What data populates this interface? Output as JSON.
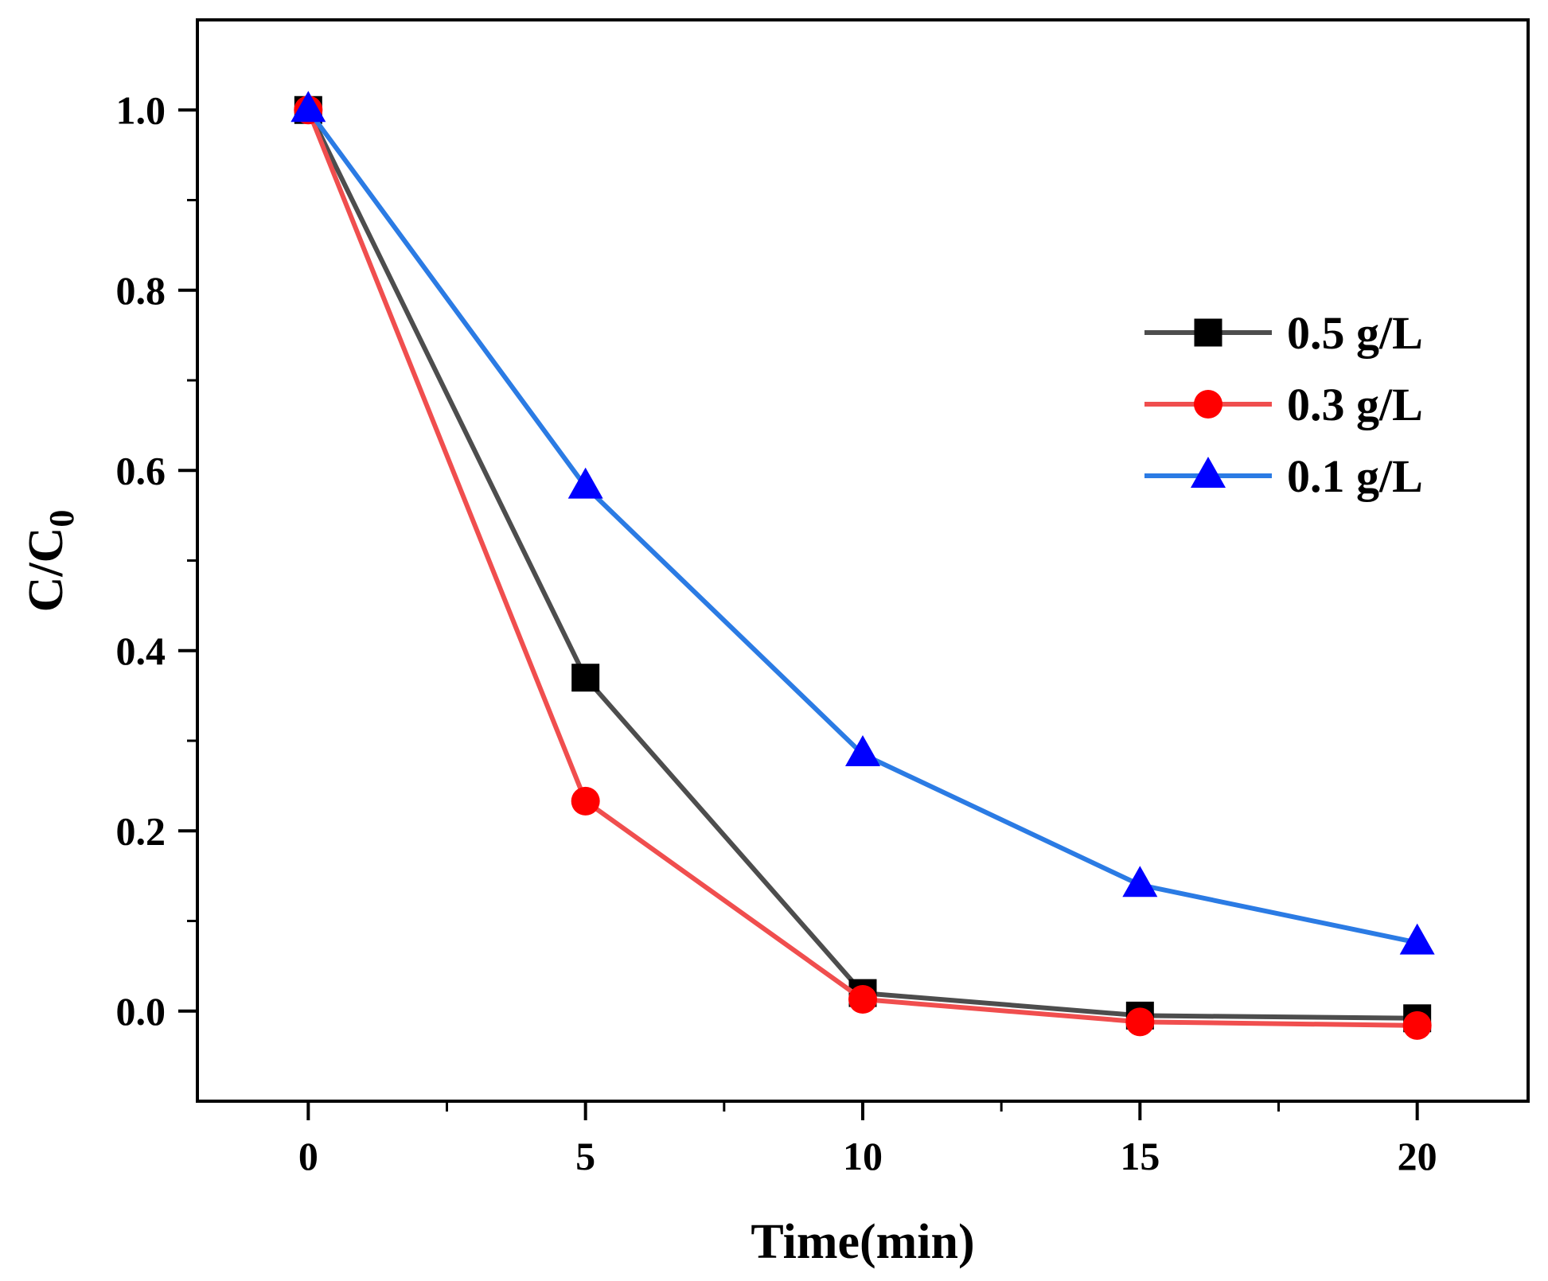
{
  "chart_data": {
    "type": "line",
    "title": "",
    "xlabel": "Time(min)",
    "ylabel_main": "C/C",
    "ylabel_sub": "0",
    "xlim": [
      -2,
      22
    ],
    "ylim": [
      -0.1,
      1.1
    ],
    "xticks": [
      0,
      5,
      10,
      15,
      20
    ],
    "xtick_labels": [
      "0",
      "5",
      "10",
      "15",
      "20"
    ],
    "yticks": [
      0.0,
      0.2,
      0.4,
      0.6,
      0.8,
      1.0
    ],
    "ytick_labels": [
      "0.0",
      "0.2",
      "0.4",
      "0.6",
      "0.8",
      "1.0"
    ],
    "x": [
      0,
      5,
      10,
      15,
      20
    ],
    "grid": false,
    "legend_position": "right",
    "series": [
      {
        "name": "0.5 g/L",
        "marker": "square",
        "line_color": "#4d4d4d",
        "marker_color": "#000000",
        "values": [
          1.0,
          0.37,
          0.02,
          -0.005,
          -0.008
        ]
      },
      {
        "name": "0.3 g/L",
        "marker": "circle",
        "line_color": "#f04e4e",
        "marker_color": "#ff0000",
        "values": [
          1.0,
          0.233,
          0.013,
          -0.012,
          -0.016
        ]
      },
      {
        "name": "0.1 g/L",
        "marker": "triangle",
        "line_color": "#2b7be4",
        "marker_color": "#0000ff",
        "values": [
          1.0,
          0.582,
          0.285,
          0.14,
          0.076
        ]
      }
    ]
  }
}
